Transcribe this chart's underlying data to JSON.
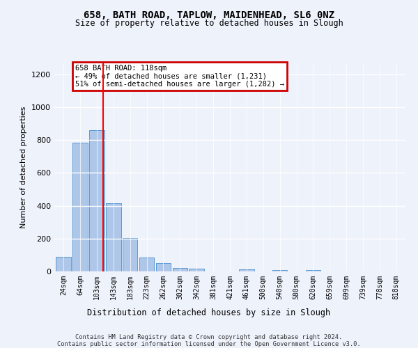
{
  "title": "658, BATH ROAD, TAPLOW, MAIDENHEAD, SL6 0NZ",
  "subtitle": "Size of property relative to detached houses in Slough",
  "xlabel": "Distribution of detached houses by size in Slough",
  "ylabel": "Number of detached properties",
  "categories": [
    "24sqm",
    "64sqm",
    "103sqm",
    "143sqm",
    "183sqm",
    "223sqm",
    "262sqm",
    "302sqm",
    "342sqm",
    "381sqm",
    "421sqm",
    "461sqm",
    "500sqm",
    "540sqm",
    "580sqm",
    "620sqm",
    "659sqm",
    "699sqm",
    "739sqm",
    "778sqm",
    "818sqm"
  ],
  "values": [
    90,
    785,
    860,
    415,
    205,
    85,
    50,
    22,
    15,
    0,
    0,
    13,
    0,
    10,
    0,
    10,
    0,
    0,
    0,
    0,
    0
  ],
  "bar_color": "#aec6e8",
  "bar_edge_color": "#5b9bd5",
  "annotation_text_line1": "658 BATH ROAD: 118sqm",
  "annotation_text_line2": "← 49% of detached houses are smaller (1,231)",
  "annotation_text_line3": "51% of semi-detached houses are larger (1,282) →",
  "annotation_box_color": "#cc0000",
  "ylim": [
    0,
    1270
  ],
  "yticks": [
    0,
    200,
    400,
    600,
    800,
    1000,
    1200
  ],
  "background_color": "#eef2fb",
  "fig_background_color": "#eef2fb",
  "grid_color": "#ffffff",
  "footer_line1": "Contains HM Land Registry data © Crown copyright and database right 2024.",
  "footer_line2": "Contains public sector information licensed under the Open Government Licence v3.0."
}
